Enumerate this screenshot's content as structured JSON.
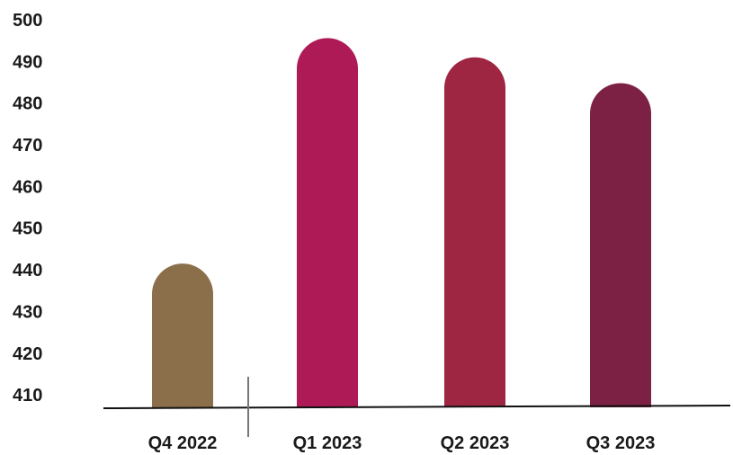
{
  "chart_data": {
    "type": "bar",
    "categories": [
      "Q4 2022",
      "Q1 2023",
      "Q2 2023",
      "Q3 2023"
    ],
    "series": [
      {
        "values": [
          441.5,
          495.6,
          491.0,
          484.8
        ]
      }
    ],
    "bar_colors": [
      "#8b6f4b",
      "#ad1a55",
      "#9e2642",
      "#7c2143"
    ],
    "yticks": [
      410,
      420,
      430,
      440,
      450,
      460,
      470,
      480,
      490,
      500
    ],
    "ylim": [
      407,
      500
    ],
    "title": "",
    "xlabel": "",
    "ylabel": "",
    "grid": false,
    "bar_shape": "rounded-top"
  }
}
